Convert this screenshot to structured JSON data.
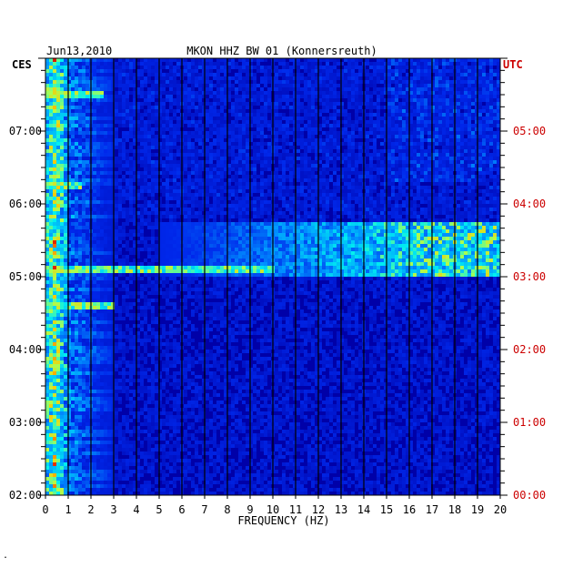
{
  "chart_data": {
    "type": "heatmap",
    "date": "Jun13,2010",
    "title": "MKON HHZ BW 01 (Konnersreuth)",
    "left_axis_label": "CES",
    "right_axis_label": "UTC",
    "xlabel": "FREQUENCY (HZ)",
    "xlim": [
      0,
      20
    ],
    "x_ticks": [
      "0",
      "1",
      "2",
      "3",
      "4",
      "5",
      "6",
      "7",
      "8",
      "9",
      "10",
      "11",
      "12",
      "13",
      "14",
      "15",
      "16",
      "17",
      "18",
      "19",
      "20"
    ],
    "left_time_ticks": [
      "07:00",
      "06:00",
      "05:00",
      "04:00",
      "03:00",
      "02:00"
    ],
    "right_time_ticks": [
      "05:00",
      "04:00",
      "03:00",
      "02:00",
      "01:00",
      "00:00"
    ],
    "ylim_utc_hours": [
      0,
      6
    ],
    "features": {
      "low_frequency_band_hz": [
        0,
        1
      ],
      "broadband_event_utc_hours": [
        3.0,
        3.75
      ],
      "broadband_event_freq_hz": [
        11,
        20
      ],
      "narrow_lines": [
        {
          "utc_hour": 3.1,
          "freq_range_hz": [
            0,
            10
          ]
        },
        {
          "utc_hour": 2.6,
          "freq_range_hz": [
            0,
            3
          ]
        },
        {
          "utc_hour": 4.25,
          "freq_range_hz": [
            0,
            1.6
          ]
        },
        {
          "utc_hour": 5.5,
          "freq_range_hz": [
            0,
            2.6
          ]
        }
      ]
    },
    "colors": {
      "background": "#0000a8",
      "grid": "#000000",
      "right_axis": "#cc0000"
    },
    "corner_mark": "."
  }
}
